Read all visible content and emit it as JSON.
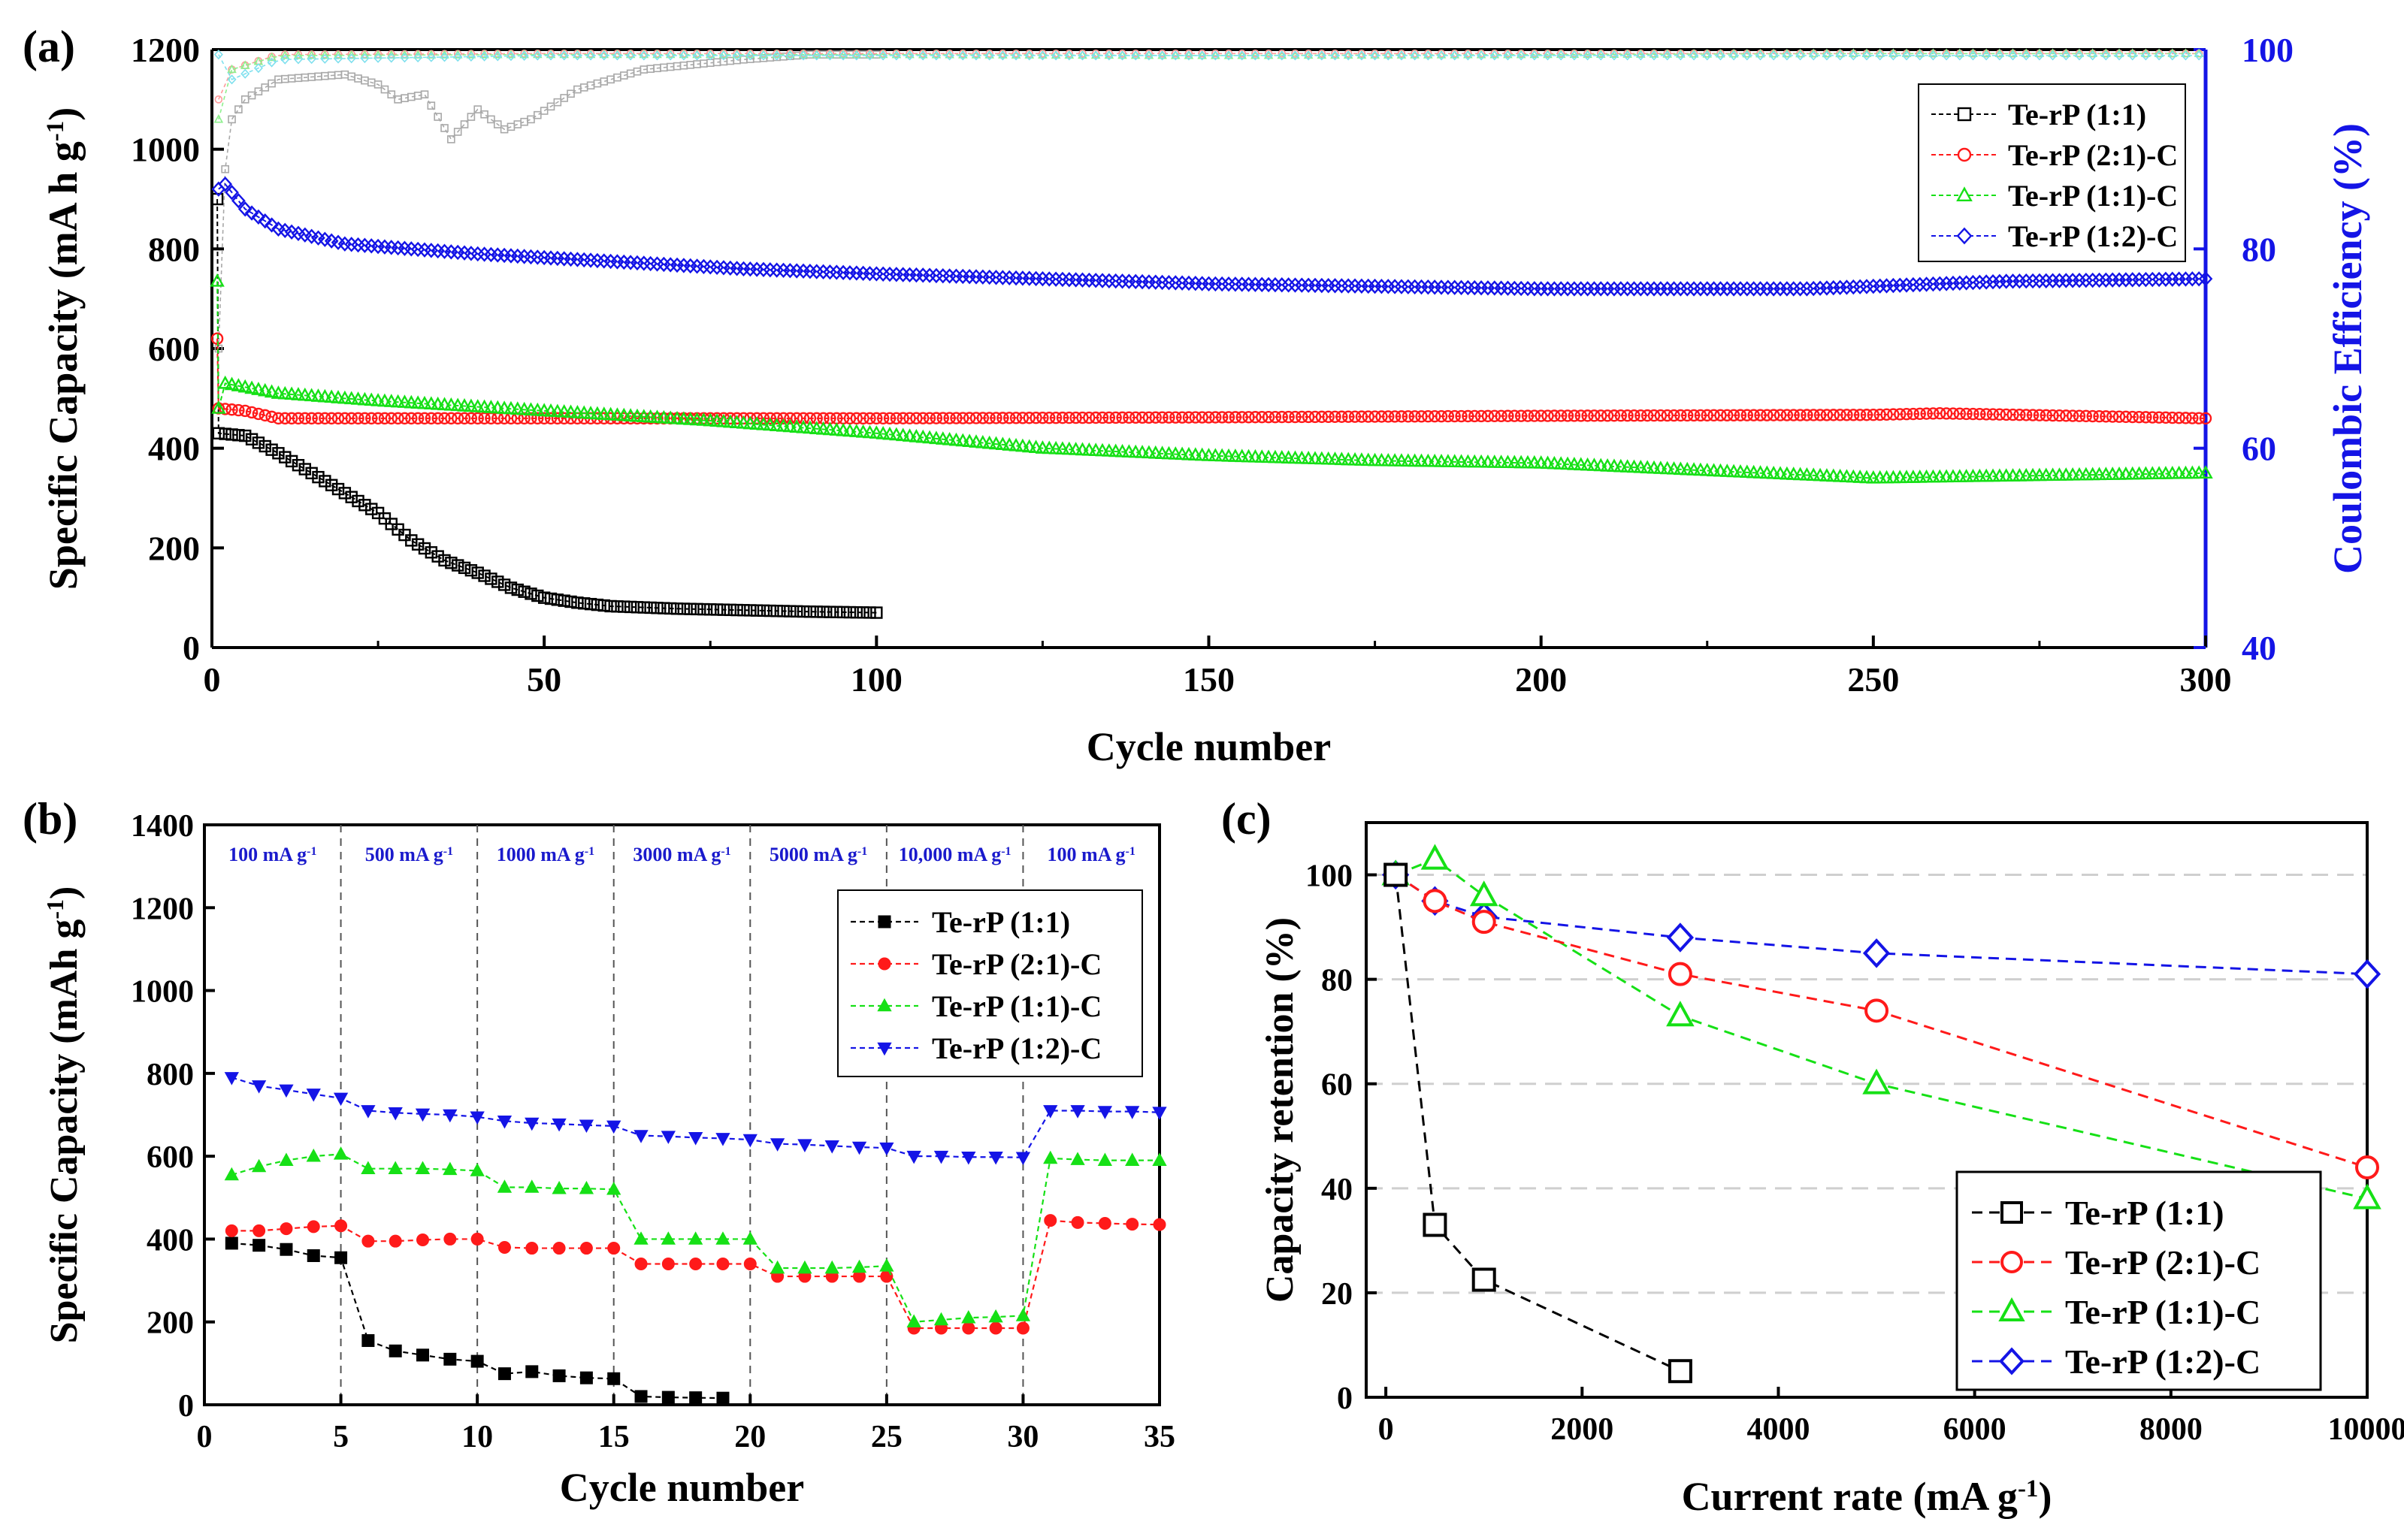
{
  "figure": {
    "panel_labels": [
      "(a)",
      "(b)",
      "(c)"
    ],
    "colors": {
      "black": "#000000",
      "red": "#ff1a1a",
      "green": "#16e016",
      "blue": "#1414e6",
      "light_gray": "#a8a8a8",
      "light_red": "#ff9a9a",
      "light_green": "#8ef08e",
      "light_cyan": "#7fe0ee",
      "band_text": "#1a1acc",
      "grid_gray": "#cfcfcf"
    }
  },
  "chart_data": [
    {
      "id": "a",
      "type": "scatter",
      "title": "",
      "xlabel": "Cycle number",
      "ylabel": "Specific Capacity (mA h g",
      "ylabel_sup": "-1",
      "ylabel_tail": ")",
      "y2label": "Coulombic Efficiency (%)",
      "xlim": [
        0,
        300
      ],
      "ylim": [
        0,
        1200
      ],
      "y2lim": [
        40,
        100
      ],
      "xticks": [
        0,
        50,
        100,
        150,
        200,
        250,
        300
      ],
      "yticks": [
        0,
        200,
        400,
        600,
        800,
        1000,
        1200
      ],
      "y2ticks": [
        40,
        60,
        80,
        100
      ],
      "legend": {
        "position": "top-right",
        "entries": [
          "Te-rP (1:1)",
          "Te-rP (2:1)-C",
          "Te-rP (1:1)-C",
          "Te-rP (1:2)-C"
        ]
      },
      "series": [
        {
          "name": "Te-rP (1:1)",
          "marker": "square",
          "color_key": "black",
          "x": [
            1,
            5,
            10,
            15,
            20,
            25,
            30,
            35,
            40,
            45,
            50,
            55,
            60,
            70,
            80,
            90,
            100
          ],
          "values": [
            430,
            425,
            390,
            350,
            310,
            270,
            215,
            175,
            150,
            120,
            100,
            90,
            83,
            78,
            75,
            72,
            70
          ],
          "first_cycle": 900
        },
        {
          "name": "Te-rP (2:1)-C",
          "marker": "circle",
          "color_key": "red",
          "x": [
            1,
            5,
            10,
            20,
            50,
            100,
            150,
            200,
            250,
            260,
            280,
            300
          ],
          "values": [
            480,
            475,
            460,
            460,
            460,
            460,
            462,
            465,
            467,
            470,
            465,
            460
          ],
          "first_cycle": 620
        },
        {
          "name": "Te-rP (1:1)-C",
          "marker": "triangle",
          "color_key": "green",
          "x": [
            1,
            2,
            10,
            25,
            50,
            75,
            100,
            125,
            150,
            175,
            200,
            225,
            250,
            275,
            300
          ],
          "values": [
            480,
            530,
            510,
            495,
            475,
            455,
            430,
            400,
            385,
            375,
            370,
            355,
            340,
            345,
            350
          ],
          "first_cycle": 735
        },
        {
          "name": "Te-rP (1:2)-C",
          "marker": "diamond",
          "color_key": "blue",
          "x": [
            1,
            2,
            5,
            10,
            20,
            40,
            60,
            80,
            100,
            150,
            200,
            240,
            270,
            300
          ],
          "values": [
            920,
            930,
            880,
            840,
            810,
            790,
            775,
            760,
            750,
            730,
            720,
            720,
            735,
            740
          ]
        },
        {
          "name": "CE Te-rP (1:1)",
          "marker": "square",
          "color_key": "light_gray",
          "axis": "y2",
          "x": [
            1,
            2,
            3,
            5,
            10,
            20,
            25,
            28,
            32,
            36,
            40,
            44,
            48,
            55,
            65,
            80,
            90,
            100
          ],
          "values": [
            70,
            88,
            93,
            95,
            97,
            97.5,
            96.5,
            95,
            95.5,
            91,
            94,
            92,
            93,
            96,
            98,
            99,
            99.5,
            99.5
          ]
        },
        {
          "name": "CE Te-rP (2:1)-C",
          "marker": "circle",
          "color_key": "light_red",
          "axis": "y2",
          "x": [
            1,
            3,
            10,
            50,
            100,
            150,
            200,
            250,
            300
          ],
          "values": [
            95,
            98,
            99.5,
            99.6,
            99.6,
            99.6,
            99.6,
            99.6,
            99.6
          ]
        },
        {
          "name": "CE Te-rP (1:1)-C",
          "marker": "triangle",
          "color_key": "light_green",
          "axis": "y2",
          "x": [
            1,
            3,
            10,
            50,
            100,
            150,
            200,
            250,
            300
          ],
          "values": [
            93,
            98,
            99.4,
            99.5,
            99.5,
            99.4,
            99.5,
            99.6,
            99.6
          ]
        },
        {
          "name": "CE Te-rP (1:2)-C",
          "marker": "diamond",
          "color_key": "light_cyan",
          "axis": "y2",
          "x": [
            1,
            2,
            3,
            10,
            50,
            100,
            150,
            200,
            250,
            300
          ],
          "values": [
            99.5,
            94,
            97,
            99,
            99.4,
            99.4,
            99.4,
            99.4,
            99.4,
            99.4
          ]
        }
      ]
    },
    {
      "id": "b",
      "type": "line",
      "title": "",
      "xlabel": "Cycle number",
      "ylabel": "Specific Capacity (mAh g",
      "ylabel_sup": "-1",
      "ylabel_tail": ")",
      "xlim": [
        0,
        35
      ],
      "ylim": [
        0,
        1400
      ],
      "xticks": [
        0,
        5,
        10,
        15,
        20,
        25,
        30,
        35
      ],
      "yticks": [
        0,
        200,
        400,
        600,
        800,
        1000,
        1200,
        1400
      ],
      "vlines": [
        5,
        10,
        15,
        20,
        25,
        30
      ],
      "rate_bands": [
        {
          "text": "100 mA g",
          "x_from": 0,
          "x_to": 5
        },
        {
          "text": "500 mA g",
          "x_from": 5,
          "x_to": 10
        },
        {
          "text": "1000 mA g",
          "x_from": 10,
          "x_to": 15
        },
        {
          "text": "3000 mA g",
          "x_from": 15,
          "x_to": 20
        },
        {
          "text": "5000 mA g",
          "x_from": 20,
          "x_to": 25
        },
        {
          "text": "10,000 mA g",
          "x_from": 25,
          "x_to": 30
        },
        {
          "text": "100 mA g",
          "x_from": 30,
          "x_to": 35
        }
      ],
      "rate_band_sup": "-1",
      "legend": {
        "position": "top-right",
        "entries": [
          "Te-rP (1:1)",
          "Te-rP (2:1)-C",
          "Te-rP (1:1)-C",
          "Te-rP (1:2)-C"
        ]
      },
      "series": [
        {
          "name": "Te-rP (1:1)",
          "marker": "square",
          "color_key": "black",
          "x": [
            1,
            2,
            3,
            4,
            5,
            6,
            7,
            8,
            9,
            10,
            11,
            12,
            13,
            14,
            15,
            16,
            17,
            18,
            19
          ],
          "values": [
            390,
            385,
            375,
            360,
            355,
            155,
            130,
            120,
            110,
            105,
            75,
            80,
            70,
            65,
            63,
            20,
            18,
            17,
            16
          ]
        },
        {
          "name": "Te-rP (2:1)-C",
          "marker": "circle",
          "color_key": "red",
          "x": [
            1,
            2,
            3,
            4,
            5,
            6,
            7,
            8,
            9,
            10,
            11,
            12,
            13,
            14,
            15,
            16,
            17,
            18,
            19,
            20,
            21,
            22,
            23,
            24,
            25,
            26,
            27,
            28,
            29,
            30,
            31,
            32,
            33,
            34,
            35
          ],
          "values": [
            420,
            420,
            425,
            430,
            432,
            395,
            395,
            398,
            400,
            400,
            380,
            378,
            378,
            378,
            378,
            340,
            340,
            340,
            340,
            340,
            310,
            310,
            310,
            310,
            310,
            185,
            185,
            185,
            185,
            185,
            445,
            440,
            438,
            436,
            435
          ]
        },
        {
          "name": "Te-rP (1:1)-C",
          "marker": "triangle",
          "color_key": "green",
          "x": [
            1,
            2,
            3,
            4,
            5,
            6,
            7,
            8,
            9,
            10,
            11,
            12,
            13,
            14,
            15,
            16,
            17,
            18,
            19,
            20,
            21,
            22,
            23,
            24,
            25,
            26,
            27,
            28,
            29,
            30,
            31,
            32,
            33,
            34,
            35
          ],
          "values": [
            555,
            575,
            590,
            600,
            605,
            570,
            570,
            570,
            568,
            565,
            525,
            525,
            522,
            522,
            520,
            400,
            400,
            400,
            400,
            400,
            330,
            330,
            330,
            332,
            335,
            200,
            205,
            210,
            212,
            215,
            595,
            592,
            590,
            590,
            590
          ]
        },
        {
          "name": "Te-rP (1:2)-C",
          "marker": "triangle-down",
          "color_key": "blue",
          "x": [
            1,
            2,
            3,
            4,
            5,
            6,
            7,
            8,
            9,
            10,
            11,
            12,
            13,
            14,
            15,
            16,
            17,
            18,
            19,
            20,
            21,
            22,
            23,
            24,
            25,
            26,
            27,
            28,
            29,
            30,
            31,
            32,
            33,
            34,
            35
          ],
          "values": [
            790,
            770,
            760,
            750,
            740,
            710,
            705,
            702,
            700,
            695,
            685,
            680,
            678,
            675,
            673,
            650,
            648,
            645,
            643,
            640,
            630,
            628,
            625,
            622,
            620,
            600,
            600,
            598,
            598,
            597,
            710,
            710,
            708,
            708,
            706
          ]
        }
      ]
    },
    {
      "id": "c",
      "type": "line",
      "title": "",
      "xlabel": "Current rate (mA g",
      "xlabel_sup": "-1",
      "xlabel_tail": ")",
      "ylabel": "Capacity retention (%)",
      "xlim": [
        -200,
        10000
      ],
      "ylim": [
        0,
        110
      ],
      "xticks": [
        0,
        2000,
        4000,
        6000,
        8000,
        10000
      ],
      "yticks": [
        0,
        20,
        40,
        60,
        80,
        100
      ],
      "hgrid": [
        20,
        40,
        60,
        80,
        100
      ],
      "legend": {
        "position": "bottom-right",
        "entries": [
          "Te-rP (1:1)",
          "Te-rP (2:1)-C",
          "Te-rP (1:1)-C",
          "Te-rP (1:2)-C"
        ]
      },
      "series": [
        {
          "name": "Te-rP (1:1)",
          "marker": "square",
          "color_key": "black",
          "x": [
            100,
            500,
            1000,
            3000
          ],
          "values": [
            100,
            33,
            22.5,
            5
          ]
        },
        {
          "name": "Te-rP (2:1)-C",
          "marker": "circle",
          "color_key": "red",
          "x": [
            100,
            500,
            1000,
            3000,
            5000,
            10000
          ],
          "values": [
            100,
            95,
            91,
            81,
            74,
            44
          ]
        },
        {
          "name": "Te-rP (1:1)-C",
          "marker": "triangle",
          "color_key": "green",
          "x": [
            100,
            500,
            1000,
            3000,
            5000,
            10000
          ],
          "values": [
            100,
            103,
            96,
            73,
            60,
            38
          ]
        },
        {
          "name": "Te-rP (1:2)-C",
          "marker": "diamond",
          "color_key": "blue",
          "x": [
            100,
            500,
            1000,
            3000,
            5000,
            10000
          ],
          "values": [
            100,
            95,
            92,
            88,
            85,
            81
          ]
        }
      ]
    }
  ]
}
